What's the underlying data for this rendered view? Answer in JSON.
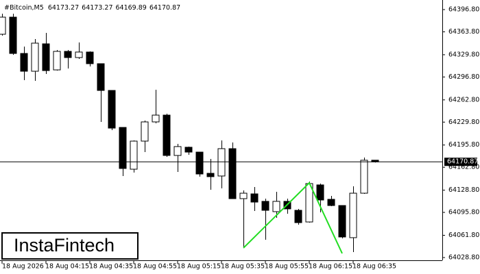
{
  "chart_data": {
    "type": "candlestick",
    "symbol": "#Bitcoin,M5",
    "watermark": "InstaFintech",
    "categories": [
      "18 Aug 2026",
      null,
      null,
      null,
      "18 Aug 04:15",
      null,
      null,
      null,
      "18 Aug 04:35",
      null,
      null,
      null,
      "18 Aug 04:55",
      null,
      null,
      null,
      "18 Aug 05:15",
      null,
      null,
      null,
      "18 Aug 05:35",
      null,
      null,
      null,
      "18 Aug 05:55",
      null,
      null,
      null,
      "18 Aug 06:15",
      null,
      null,
      null,
      "18 Aug 06:35",
      null,
      null
    ],
    "open": [
      64360.2,
      64385.6,
      64331.7,
      64305.3,
      64346.0,
      64307.3,
      64334.8,
      64325.6,
      64333.8,
      64316.5,
      64276.8,
      64221.9,
      64159.9,
      64201.6,
      64230.1,
      64240.2,
      64180.3,
      64192.5,
      64185.3,
      64153.8,
      64149.8,
      64190.4,
      64116.2,
      64123.3,
      64112.2,
      64096.9,
      64112.2,
      64098.9,
      64081.6,
      64136.6,
      64115.2,
      64106.0,
      64058.3,
      64124.3,
      64173.27
    ],
    "high": [
      64390.7,
      64390.7,
      64341.9,
      64353.1,
      64362.2,
      64336.8,
      64336.8,
      64348.0,
      64334.8,
      64316.5,
      64276.8,
      64221.9,
      64202.6,
      64232.1,
      64277.9,
      64242.3,
      64197.5,
      64193.5,
      64185.3,
      64175.2,
      64202.6,
      64199.6,
      64128.4,
      64133.5,
      64116.2,
      64126.4,
      64116.2,
      64101.0,
      64141.6,
      64138.6,
      64120.3,
      64106.0,
      64134.5,
      64177.2,
      64173.27
    ],
    "low": [
      64358.2,
      64329.7,
      64292.1,
      64291.1,
      64301.2,
      64306.3,
      64309.4,
      64323.6,
      64312.4,
      64230.1,
      64217.9,
      64149.8,
      64154.9,
      64185.3,
      64228.0,
      64178.2,
      64155.9,
      64181.3,
      64148.8,
      64129.4,
      64131.5,
      64116.2,
      64043.0,
      64097.9,
      64055.2,
      64087.7,
      64093.8,
      64077.6,
      64080.6,
      64095.9,
      64105.0,
      64057.2,
      64036.9,
      64123.3,
      64169.89
    ],
    "close": [
      64385.6,
      64331.7,
      64305.3,
      64347.0,
      64306.3,
      64334.8,
      64325.6,
      64333.8,
      64316.5,
      64276.8,
      64220.9,
      64161.0,
      64201.6,
      64230.1,
      64240.2,
      64180.3,
      64193.5,
      64185.3,
      64152.8,
      64148.8,
      64190.4,
      64116.2,
      64124.3,
      64111.1,
      64098.9,
      64112.2,
      64101.0,
      64080.6,
      64138.6,
      64114.2,
      64106.0,
      64059.3,
      64124.3,
      64173.2,
      64170.87
    ],
    "up_color": "#ffffff",
    "down_color": "#000000",
    "pattern": {
      "x": [
        22,
        28,
        31
      ],
      "values": [
        64043.0,
        64139.6,
        64034.9
      ],
      "color": "#22dd22"
    },
    "ylim": [
      64024.7,
      64409.0
    ],
    "yticks": [
      {
        "value": 64396.8,
        "label": "64396.80"
      },
      {
        "value": 64363.8,
        "label": "64363.80"
      },
      {
        "value": 64329.8,
        "label": "64329.80"
      },
      {
        "value": 64296.8,
        "label": "64296.80"
      },
      {
        "value": 64262.8,
        "label": "64262.80"
      },
      {
        "value": 64229.8,
        "label": "64229.80"
      },
      {
        "value": 64195.8,
        "label": "64195.80"
      },
      {
        "value": 64162.8,
        "label": "64162.80"
      },
      {
        "value": 64128.8,
        "label": "64128.80"
      },
      {
        "value": 64095.8,
        "label": "64095.80"
      },
      {
        "value": 64061.8,
        "label": "64061.80"
      },
      {
        "value": 64028.8,
        "label": "64028.80"
      }
    ]
  }
}
